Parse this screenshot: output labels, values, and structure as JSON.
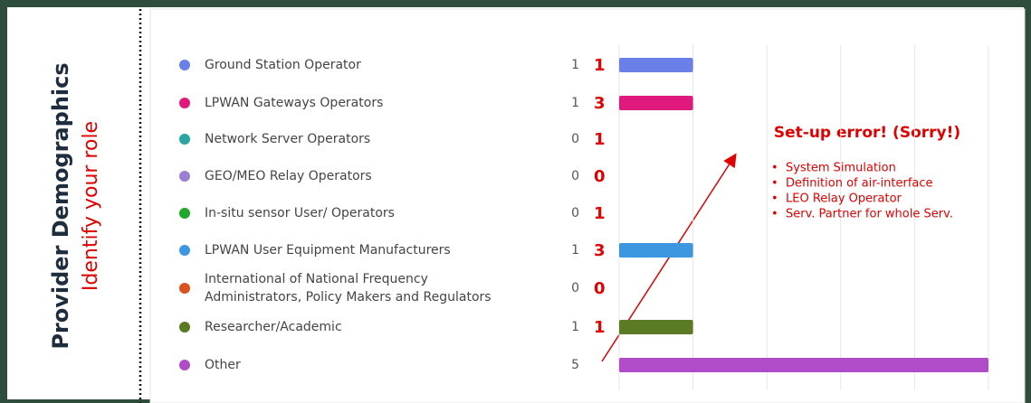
{
  "chart_data": {
    "type": "bar",
    "orientation": "horizontal",
    "title": "Provider Demographics",
    "subtitle": "Identify your role",
    "categories": [
      "Ground Station Operator",
      "LPWAN Gateways Operators",
      "Network Server Operators",
      "GEO/MEO Relay Operators",
      "In-situ sensor User/ Operators",
      "LPWAN User Equipment Manufacturers",
      "International of National Frequency\nAdministrators, Policy Makers and Regulators",
      "Researcher/Academic",
      "Other"
    ],
    "values": [
      1,
      1,
      0,
      0,
      0,
      1,
      0,
      1,
      5
    ],
    "colors": [
      "#6b7fe8",
      "#e0197d",
      "#2aa5a0",
      "#9b7fd0",
      "#1fa82a",
      "#3d96e0",
      "#d9541e",
      "#5a7a23",
      "#b04cc8"
    ],
    "corrections": [
      1,
      3,
      1,
      0,
      1,
      3,
      0,
      1,
      null
    ],
    "xlim": [
      0,
      5
    ],
    "xticks": [
      0,
      1,
      2,
      3,
      4,
      5
    ],
    "grid": true,
    "annotation": {
      "title": "Set-up error! (Sorry!)",
      "items": [
        "System Simulation",
        "Definition of air-interface",
        "LEO Relay Operator",
        "Serv. Partner for whole Serv."
      ]
    }
  }
}
